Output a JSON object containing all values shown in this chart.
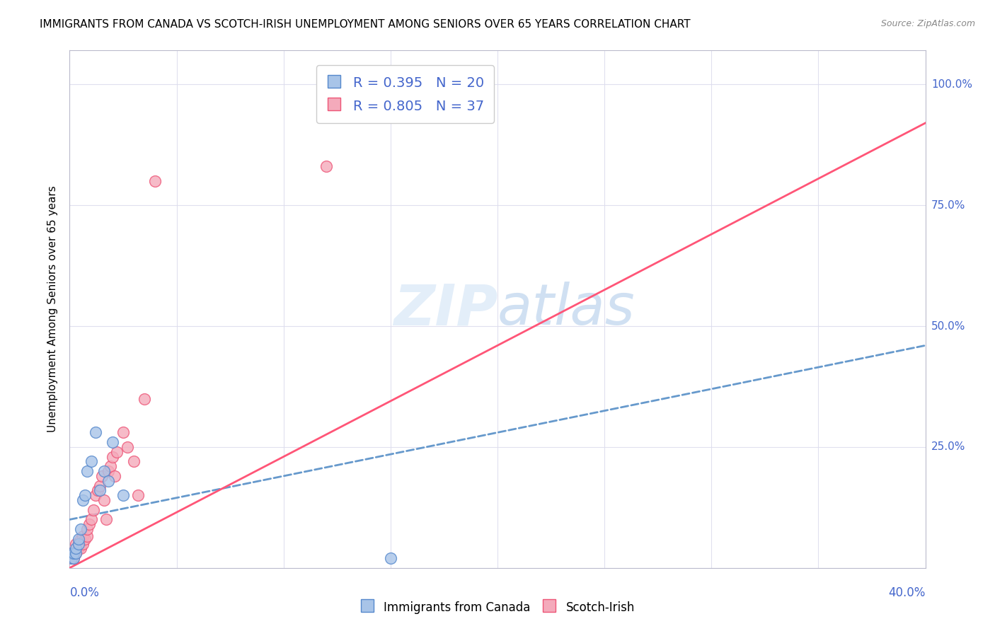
{
  "title": "IMMIGRANTS FROM CANADA VS SCOTCH-IRISH UNEMPLOYMENT AMONG SENIORS OVER 65 YEARS CORRELATION CHART",
  "source": "Source: ZipAtlas.com",
  "ylabel": "Unemployment Among Seniors over 65 years",
  "canada_R": "0.395",
  "canada_N": "20",
  "scotch_R": "0.805",
  "scotch_N": "37",
  "canada_color": "#A8C4E8",
  "scotch_color": "#F4AABB",
  "canada_edge_color": "#5588CC",
  "scotch_edge_color": "#EE5577",
  "canada_line_color": "#6699CC",
  "scotch_line_color": "#FF5577",
  "legend_label_canada": "Immigrants from Canada",
  "legend_label_scotch": "Scotch-Irish",
  "axis_label_color": "#4466CC",
  "title_fontsize": 11,
  "canada_scatter_x": [
    0.001,
    0.001,
    0.002,
    0.002,
    0.003,
    0.003,
    0.004,
    0.004,
    0.005,
    0.006,
    0.007,
    0.008,
    0.01,
    0.012,
    0.014,
    0.016,
    0.018,
    0.02,
    0.025,
    0.15
  ],
  "canada_scatter_y": [
    0.02,
    0.03,
    0.02,
    0.03,
    0.03,
    0.04,
    0.05,
    0.06,
    0.08,
    0.14,
    0.15,
    0.2,
    0.22,
    0.28,
    0.16,
    0.2,
    0.18,
    0.26,
    0.15,
    0.02
  ],
  "scotch_scatter_x": [
    0.001,
    0.001,
    0.002,
    0.002,
    0.003,
    0.003,
    0.004,
    0.004,
    0.005,
    0.005,
    0.006,
    0.006,
    0.007,
    0.008,
    0.008,
    0.009,
    0.01,
    0.011,
    0.012,
    0.013,
    0.014,
    0.015,
    0.016,
    0.017,
    0.018,
    0.019,
    0.02,
    0.021,
    0.022,
    0.025,
    0.027,
    0.03,
    0.032,
    0.035,
    0.04,
    0.12,
    0.135
  ],
  "scotch_scatter_y": [
    0.02,
    0.03,
    0.02,
    0.03,
    0.03,
    0.05,
    0.04,
    0.05,
    0.04,
    0.06,
    0.05,
    0.065,
    0.06,
    0.065,
    0.08,
    0.09,
    0.1,
    0.12,
    0.15,
    0.16,
    0.17,
    0.19,
    0.14,
    0.1,
    0.2,
    0.21,
    0.23,
    0.19,
    0.24,
    0.28,
    0.25,
    0.22,
    0.15,
    0.35,
    0.8,
    0.83,
    1.02
  ],
  "canada_line_x0": 0.0,
  "canada_line_y0": 0.1,
  "canada_line_x1": 0.4,
  "canada_line_y1": 0.46,
  "scotch_line_x0": 0.0,
  "scotch_line_y0": 0.0,
  "scotch_line_x1": 0.4,
  "scotch_line_y1": 0.92,
  "xlim": [
    0,
    0.4
  ],
  "ylim": [
    0,
    1.07
  ],
  "ytick_positions": [
    0.0,
    0.25,
    0.5,
    0.75,
    1.0
  ],
  "ytick_labels": [
    "",
    "25.0%",
    "50.0%",
    "75.0%",
    "100.0%"
  ]
}
